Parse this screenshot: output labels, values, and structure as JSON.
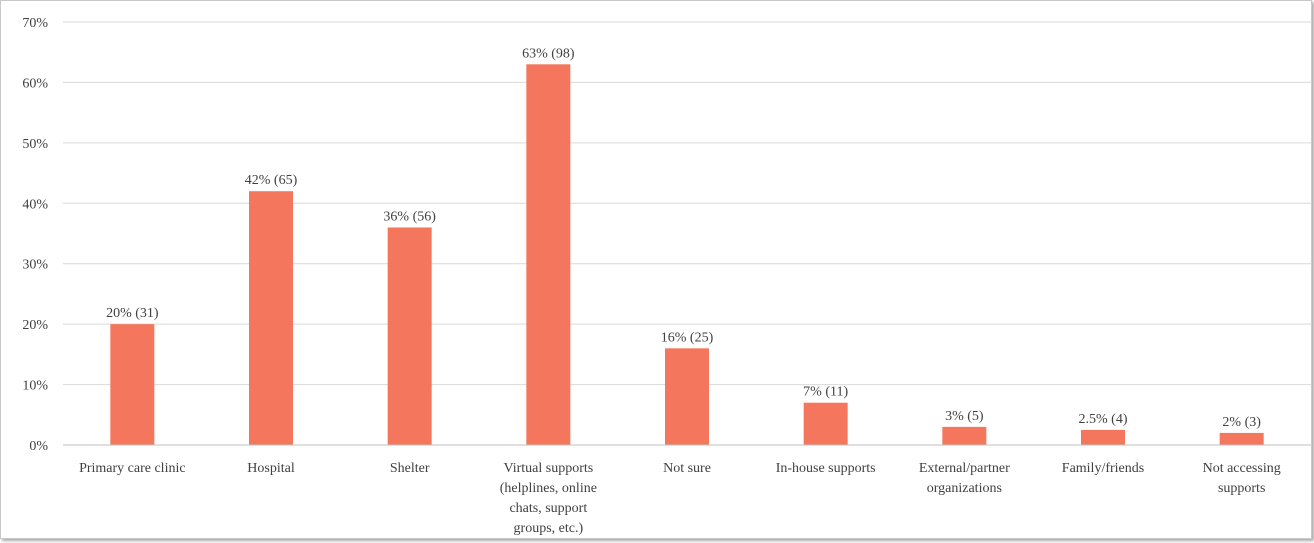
{
  "chart_data": {
    "type": "bar",
    "title": "",
    "xlabel": "",
    "ylabel": "",
    "ylim": [
      0,
      70
    ],
    "yticks": [
      "0%",
      "10%",
      "20%",
      "30%",
      "40%",
      "50%",
      "60%",
      "70%"
    ],
    "grid": true,
    "categories": [
      [
        "Primary care clinic"
      ],
      [
        "Hospital"
      ],
      [
        "Shelter"
      ],
      [
        "Virtual supports",
        "(helplines, online",
        "chats, support",
        "groups, etc.)"
      ],
      [
        "Not sure"
      ],
      [
        "In-house supports"
      ],
      [
        "External/partner",
        "organizations"
      ],
      [
        "Family/friends"
      ],
      [
        "Not accessing",
        "supports"
      ]
    ],
    "values": [
      20,
      42,
      36,
      63,
      16,
      7,
      3,
      2.5,
      2
    ],
    "data_labels": [
      "20% (31)",
      "42% (65)",
      "36% (56)",
      "63% (98)",
      "16% (25)",
      "7% (11)",
      "3% (5)",
      "2.5% (4)",
      "2% (3)"
    ],
    "colors": {
      "bar": "#F4775D",
      "grid": "#d9d9d9",
      "axis": "#bfbfbf",
      "text": "#404040"
    }
  }
}
